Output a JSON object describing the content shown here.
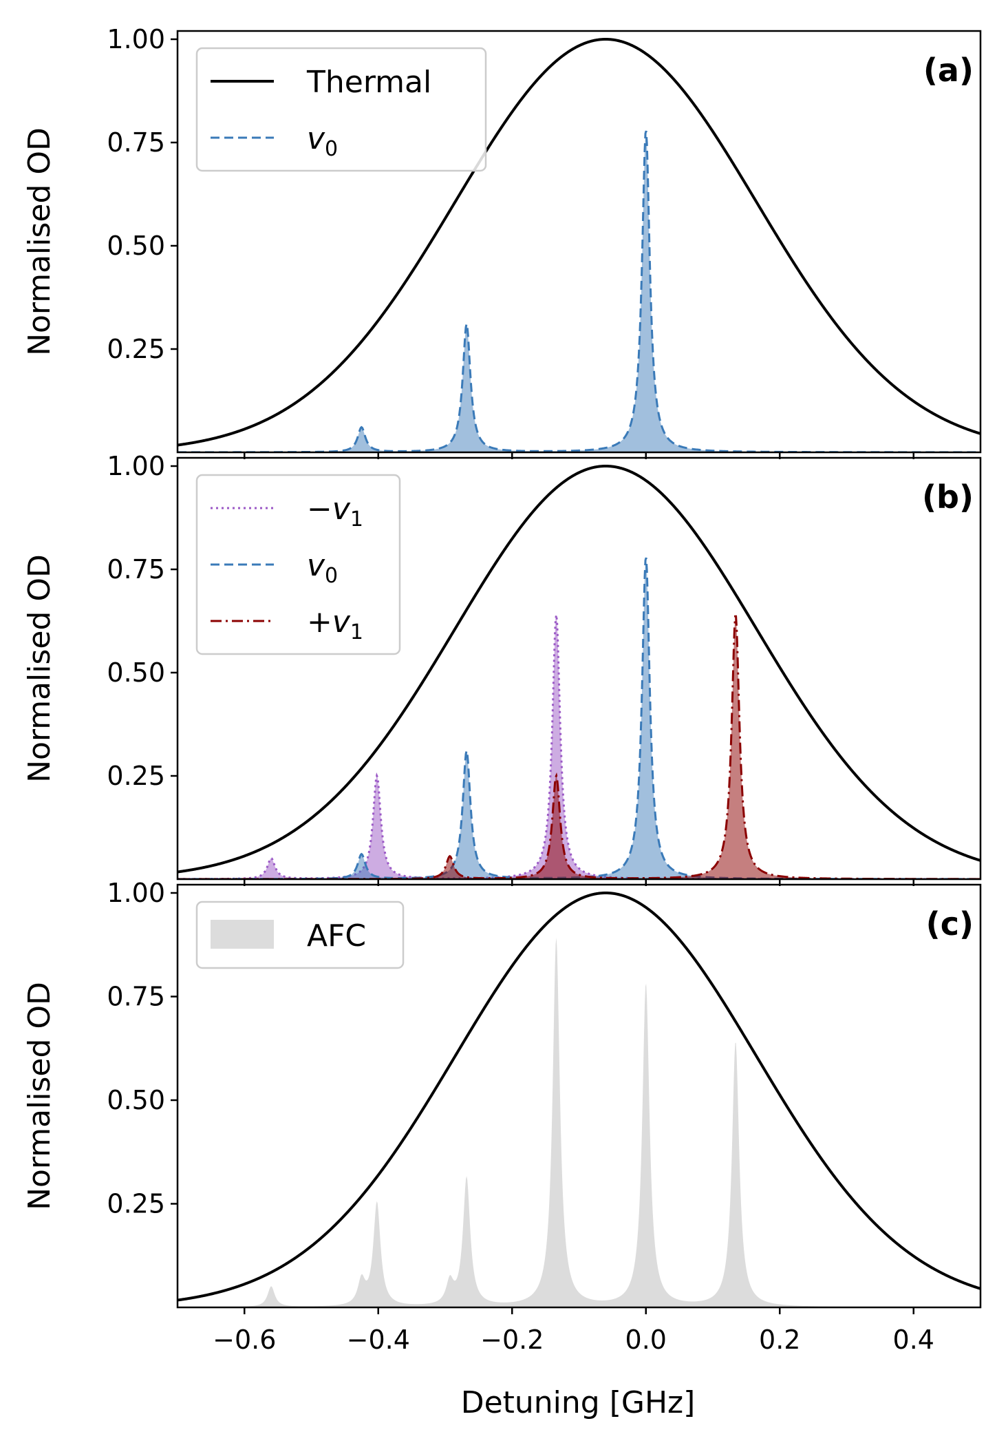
{
  "chart_data": {
    "type": "line",
    "xlabel": "Detuning [GHz]",
    "xlim": [
      -0.7,
      0.5
    ],
    "x_ticks": [
      -0.6,
      -0.4,
      -0.2,
      0.0,
      0.2,
      0.4
    ],
    "x_tick_labels": [
      "−0.6",
      "−0.4",
      "−0.2",
      "0.0",
      "0.2",
      "0.4"
    ],
    "shared_ylabel": "Normalised OD",
    "ylim": [
      0,
      1.0
    ],
    "y_ticks": [
      0.25,
      0.5,
      0.75,
      1.0
    ],
    "y_tick_labels": [
      "0.25",
      "0.50",
      "0.75",
      "1.00"
    ],
    "thermal": {
      "name": "Thermal",
      "shape": "gaussian",
      "center": -0.06,
      "sigma": 0.225,
      "amplitude": 1.0
    },
    "colors": {
      "thermal": "#000000",
      "v0": "#3a7ab8",
      "minus_v1": "#9b59c6",
      "plus_v1": "#8b0000",
      "afc": "#dcdcdc"
    },
    "series": {
      "v0": {
        "name": "v0",
        "style": "dashed",
        "peaks": [
          {
            "x": -0.425,
            "y": 0.06
          },
          {
            "x": -0.268,
            "y": 0.31
          },
          {
            "x": 0.0,
            "y": 0.78
          }
        ]
      },
      "minus_v1": {
        "name": "-v1",
        "style": "dotted",
        "peaks": [
          {
            "x": -0.56,
            "y": 0.05
          },
          {
            "x": -0.402,
            "y": 0.25
          },
          {
            "x": -0.134,
            "y": 0.64
          }
        ]
      },
      "plus_v1": {
        "name": "+v1",
        "style": "dashdot",
        "peaks": [
          {
            "x": -0.293,
            "y": 0.055
          },
          {
            "x": -0.134,
            "y": 0.25
          },
          {
            "x": 0.134,
            "y": 0.64
          }
        ]
      }
    },
    "panels": [
      {
        "id": "a",
        "label": "(a)",
        "legend": [
          {
            "key": "thermal",
            "text": "Thermal"
          },
          {
            "key": "v0",
            "text": "v",
            "sub": "0",
            "prefix": ""
          }
        ],
        "curves": [
          "v0"
        ],
        "afc": false
      },
      {
        "id": "b",
        "label": "(b)",
        "legend": [
          {
            "key": "minus_v1",
            "text": "v",
            "sub": "1",
            "prefix": "−"
          },
          {
            "key": "v0",
            "text": "v",
            "sub": "0",
            "prefix": ""
          },
          {
            "key": "plus_v1",
            "text": "v",
            "sub": "1",
            "prefix": "+"
          }
        ],
        "curves": [
          "minus_v1",
          "v0",
          "plus_v1"
        ],
        "afc": false
      },
      {
        "id": "c",
        "label": "(c)",
        "legend": [
          {
            "key": "afc",
            "text": "AFC"
          }
        ],
        "curves": [],
        "afc": true
      }
    ]
  }
}
